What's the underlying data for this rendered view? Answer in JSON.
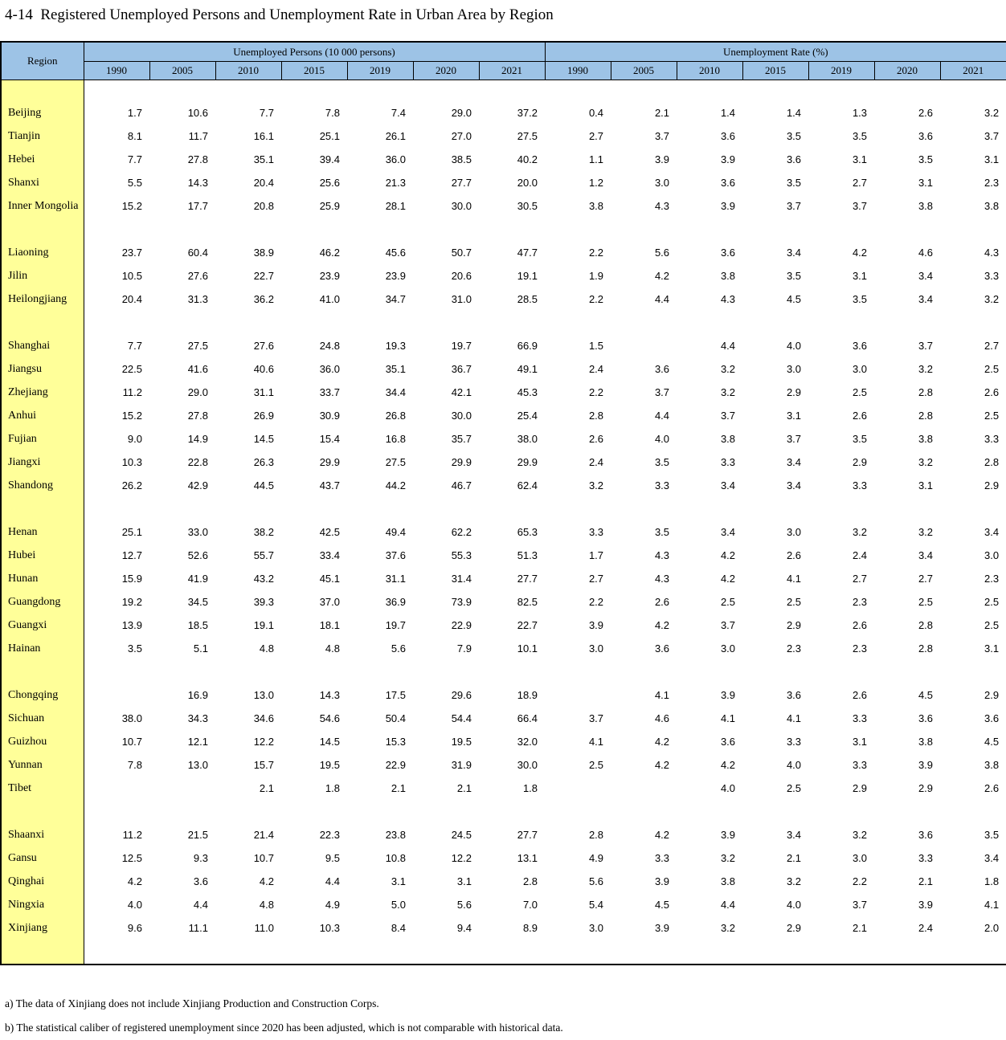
{
  "title": "4-14  Registered Unemployed Persons and Unemployment Rate in Urban Area by Region",
  "colors": {
    "header_blue": "#9DC3E6",
    "region_yellow": "#FFFF99",
    "border": "#000000"
  },
  "table": {
    "region_header": "Region",
    "group_headers": {
      "persons": "Unemployed Persons (10 000 persons)",
      "rate": "Unemployment Rate (%)"
    },
    "years": [
      "1990",
      "2005",
      "2010",
      "2015",
      "2019",
      "2020",
      "2021"
    ],
    "groups": [
      {
        "rows": [
          {
            "region": "Beijing",
            "persons": [
              "1.7",
              "10.6",
              "7.7",
              "7.8",
              "7.4",
              "29.0",
              "37.2"
            ],
            "rate": [
              "0.4",
              "2.1",
              "1.4",
              "1.4",
              "1.3",
              "2.6",
              "3.2"
            ]
          },
          {
            "region": "Tianjin",
            "persons": [
              "8.1",
              "11.7",
              "16.1",
              "25.1",
              "26.1",
              "27.0",
              "27.5"
            ],
            "rate": [
              "2.7",
              "3.7",
              "3.6",
              "3.5",
              "3.5",
              "3.6",
              "3.7"
            ]
          },
          {
            "region": "Hebei",
            "persons": [
              "7.7",
              "27.8",
              "35.1",
              "39.4",
              "36.0",
              "38.5",
              "40.2"
            ],
            "rate": [
              "1.1",
              "3.9",
              "3.9",
              "3.6",
              "3.1",
              "3.5",
              "3.1"
            ]
          },
          {
            "region": "Shanxi",
            "persons": [
              "5.5",
              "14.3",
              "20.4",
              "25.6",
              "21.3",
              "27.7",
              "20.0"
            ],
            "rate": [
              "1.2",
              "3.0",
              "3.6",
              "3.5",
              "2.7",
              "3.1",
              "2.3"
            ]
          },
          {
            "region": "Inner Mongolia",
            "persons": [
              "15.2",
              "17.7",
              "20.8",
              "25.9",
              "28.1",
              "30.0",
              "30.5"
            ],
            "rate": [
              "3.8",
              "4.3",
              "3.9",
              "3.7",
              "3.7",
              "3.8",
              "3.8"
            ]
          }
        ]
      },
      {
        "rows": [
          {
            "region": "Liaoning",
            "persons": [
              "23.7",
              "60.4",
              "38.9",
              "46.2",
              "45.6",
              "50.7",
              "47.7"
            ],
            "rate": [
              "2.2",
              "5.6",
              "3.6",
              "3.4",
              "4.2",
              "4.6",
              "4.3"
            ]
          },
          {
            "region": "Jilin",
            "persons": [
              "10.5",
              "27.6",
              "22.7",
              "23.9",
              "23.9",
              "20.6",
              "19.1"
            ],
            "rate": [
              "1.9",
              "4.2",
              "3.8",
              "3.5",
              "3.1",
              "3.4",
              "3.3"
            ]
          },
          {
            "region": "Heilongjiang",
            "persons": [
              "20.4",
              "31.3",
              "36.2",
              "41.0",
              "34.7",
              "31.0",
              "28.5"
            ],
            "rate": [
              "2.2",
              "4.4",
              "4.3",
              "4.5",
              "3.5",
              "3.4",
              "3.2"
            ]
          }
        ]
      },
      {
        "rows": [
          {
            "region": "Shanghai",
            "persons": [
              "7.7",
              "27.5",
              "27.6",
              "24.8",
              "19.3",
              "19.7",
              "66.9"
            ],
            "rate": [
              "1.5",
              "",
              "4.4",
              "4.0",
              "3.6",
              "3.7",
              "2.7"
            ]
          },
          {
            "region": "Jiangsu",
            "persons": [
              "22.5",
              "41.6",
              "40.6",
              "36.0",
              "35.1",
              "36.7",
              "49.1"
            ],
            "rate": [
              "2.4",
              "3.6",
              "3.2",
              "3.0",
              "3.0",
              "3.2",
              "2.5"
            ]
          },
          {
            "region": "Zhejiang",
            "persons": [
              "11.2",
              "29.0",
              "31.1",
              "33.7",
              "34.4",
              "42.1",
              "45.3"
            ],
            "rate": [
              "2.2",
              "3.7",
              "3.2",
              "2.9",
              "2.5",
              "2.8",
              "2.6"
            ]
          },
          {
            "region": "Anhui",
            "persons": [
              "15.2",
              "27.8",
              "26.9",
              "30.9",
              "26.8",
              "30.0",
              "25.4"
            ],
            "rate": [
              "2.8",
              "4.4",
              "3.7",
              "3.1",
              "2.6",
              "2.8",
              "2.5"
            ]
          },
          {
            "region": "Fujian",
            "persons": [
              "9.0",
              "14.9",
              "14.5",
              "15.4",
              "16.8",
              "35.7",
              "38.0"
            ],
            "rate": [
              "2.6",
              "4.0",
              "3.8",
              "3.7",
              "3.5",
              "3.8",
              "3.3"
            ]
          },
          {
            "region": "Jiangxi",
            "persons": [
              "10.3",
              "22.8",
              "26.3",
              "29.9",
              "27.5",
              "29.9",
              "29.9"
            ],
            "rate": [
              "2.4",
              "3.5",
              "3.3",
              "3.4",
              "2.9",
              "3.2",
              "2.8"
            ]
          },
          {
            "region": "Shandong",
            "persons": [
              "26.2",
              "42.9",
              "44.5",
              "43.7",
              "44.2",
              "46.7",
              "62.4"
            ],
            "rate": [
              "3.2",
              "3.3",
              "3.4",
              "3.4",
              "3.3",
              "3.1",
              "2.9"
            ]
          }
        ]
      },
      {
        "rows": [
          {
            "region": "Henan",
            "persons": [
              "25.1",
              "33.0",
              "38.2",
              "42.5",
              "49.4",
              "62.2",
              "65.3"
            ],
            "rate": [
              "3.3",
              "3.5",
              "3.4",
              "3.0",
              "3.2",
              "3.2",
              "3.4"
            ]
          },
          {
            "region": "Hubei",
            "persons": [
              "12.7",
              "52.6",
              "55.7",
              "33.4",
              "37.6",
              "55.3",
              "51.3"
            ],
            "rate": [
              "1.7",
              "4.3",
              "4.2",
              "2.6",
              "2.4",
              "3.4",
              "3.0"
            ]
          },
          {
            "region": "Hunan",
            "persons": [
              "15.9",
              "41.9",
              "43.2",
              "45.1",
              "31.1",
              "31.4",
              "27.7"
            ],
            "rate": [
              "2.7",
              "4.3",
              "4.2",
              "4.1",
              "2.7",
              "2.7",
              "2.3"
            ]
          },
          {
            "region": "Guangdong",
            "persons": [
              "19.2",
              "34.5",
              "39.3",
              "37.0",
              "36.9",
              "73.9",
              "82.5"
            ],
            "rate": [
              "2.2",
              "2.6",
              "2.5",
              "2.5",
              "2.3",
              "2.5",
              "2.5"
            ]
          },
          {
            "region": "Guangxi",
            "persons": [
              "13.9",
              "18.5",
              "19.1",
              "18.1",
              "19.7",
              "22.9",
              "22.7"
            ],
            "rate": [
              "3.9",
              "4.2",
              "3.7",
              "2.9",
              "2.6",
              "2.8",
              "2.5"
            ]
          },
          {
            "region": "Hainan",
            "persons": [
              "3.5",
              "5.1",
              "4.8",
              "4.8",
              "5.6",
              "7.9",
              "10.1"
            ],
            "rate": [
              "3.0",
              "3.6",
              "3.0",
              "2.3",
              "2.3",
              "2.8",
              "3.1"
            ]
          }
        ]
      },
      {
        "rows": [
          {
            "region": "Chongqing",
            "persons": [
              "",
              "16.9",
              "13.0",
              "14.3",
              "17.5",
              "29.6",
              "18.9"
            ],
            "rate": [
              "",
              "4.1",
              "3.9",
              "3.6",
              "2.6",
              "4.5",
              "2.9"
            ]
          },
          {
            "region": "Sichuan",
            "persons": [
              "38.0",
              "34.3",
              "34.6",
              "54.6",
              "50.4",
              "54.4",
              "66.4"
            ],
            "rate": [
              "3.7",
              "4.6",
              "4.1",
              "4.1",
              "3.3",
              "3.6",
              "3.6"
            ]
          },
          {
            "region": "Guizhou",
            "persons": [
              "10.7",
              "12.1",
              "12.2",
              "14.5",
              "15.3",
              "19.5",
              "32.0"
            ],
            "rate": [
              "4.1",
              "4.2",
              "3.6",
              "3.3",
              "3.1",
              "3.8",
              "4.5"
            ]
          },
          {
            "region": "Yunnan",
            "persons": [
              "7.8",
              "13.0",
              "15.7",
              "19.5",
              "22.9",
              "31.9",
              "30.0"
            ],
            "rate": [
              "2.5",
              "4.2",
              "4.2",
              "4.0",
              "3.3",
              "3.9",
              "3.8"
            ]
          },
          {
            "region": "Tibet",
            "persons": [
              "",
              "",
              "2.1",
              "1.8",
              "2.1",
              "2.1",
              "1.8"
            ],
            "rate": [
              "",
              "",
              "4.0",
              "2.5",
              "2.9",
              "2.9",
              "2.6"
            ]
          }
        ]
      },
      {
        "rows": [
          {
            "region": "Shaanxi",
            "persons": [
              "11.2",
              "21.5",
              "21.4",
              "22.3",
              "23.8",
              "24.5",
              "27.7"
            ],
            "rate": [
              "2.8",
              "4.2",
              "3.9",
              "3.4",
              "3.2",
              "3.6",
              "3.5"
            ]
          },
          {
            "region": "Gansu",
            "persons": [
              "12.5",
              "9.3",
              "10.7",
              "9.5",
              "10.8",
              "12.2",
              "13.1"
            ],
            "rate": [
              "4.9",
              "3.3",
              "3.2",
              "2.1",
              "3.0",
              "3.3",
              "3.4"
            ]
          },
          {
            "region": "Qinghai",
            "persons": [
              "4.2",
              "3.6",
              "4.2",
              "4.4",
              "3.1",
              "3.1",
              "2.8"
            ],
            "rate": [
              "5.6",
              "3.9",
              "3.8",
              "3.2",
              "2.2",
              "2.1",
              "1.8"
            ]
          },
          {
            "region": "Ningxia",
            "persons": [
              "4.0",
              "4.4",
              "4.8",
              "4.9",
              "5.0",
              "5.6",
              "7.0"
            ],
            "rate": [
              "5.4",
              "4.5",
              "4.4",
              "4.0",
              "3.7",
              "3.9",
              "4.1"
            ]
          },
          {
            "region": "Xinjiang",
            "persons": [
              "9.6",
              "11.1",
              "11.0",
              "10.3",
              "8.4",
              "9.4",
              "8.9"
            ],
            "rate": [
              "3.0",
              "3.9",
              "3.2",
              "2.9",
              "2.1",
              "2.4",
              "2.0"
            ]
          }
        ]
      }
    ]
  },
  "footnotes": [
    "a) The data of Xinjiang does not include Xinjiang Production and Construction Corps.",
    "b) The statistical caliber of registered unemployment since 2020 has been adjusted, which is not comparable with historical data."
  ]
}
